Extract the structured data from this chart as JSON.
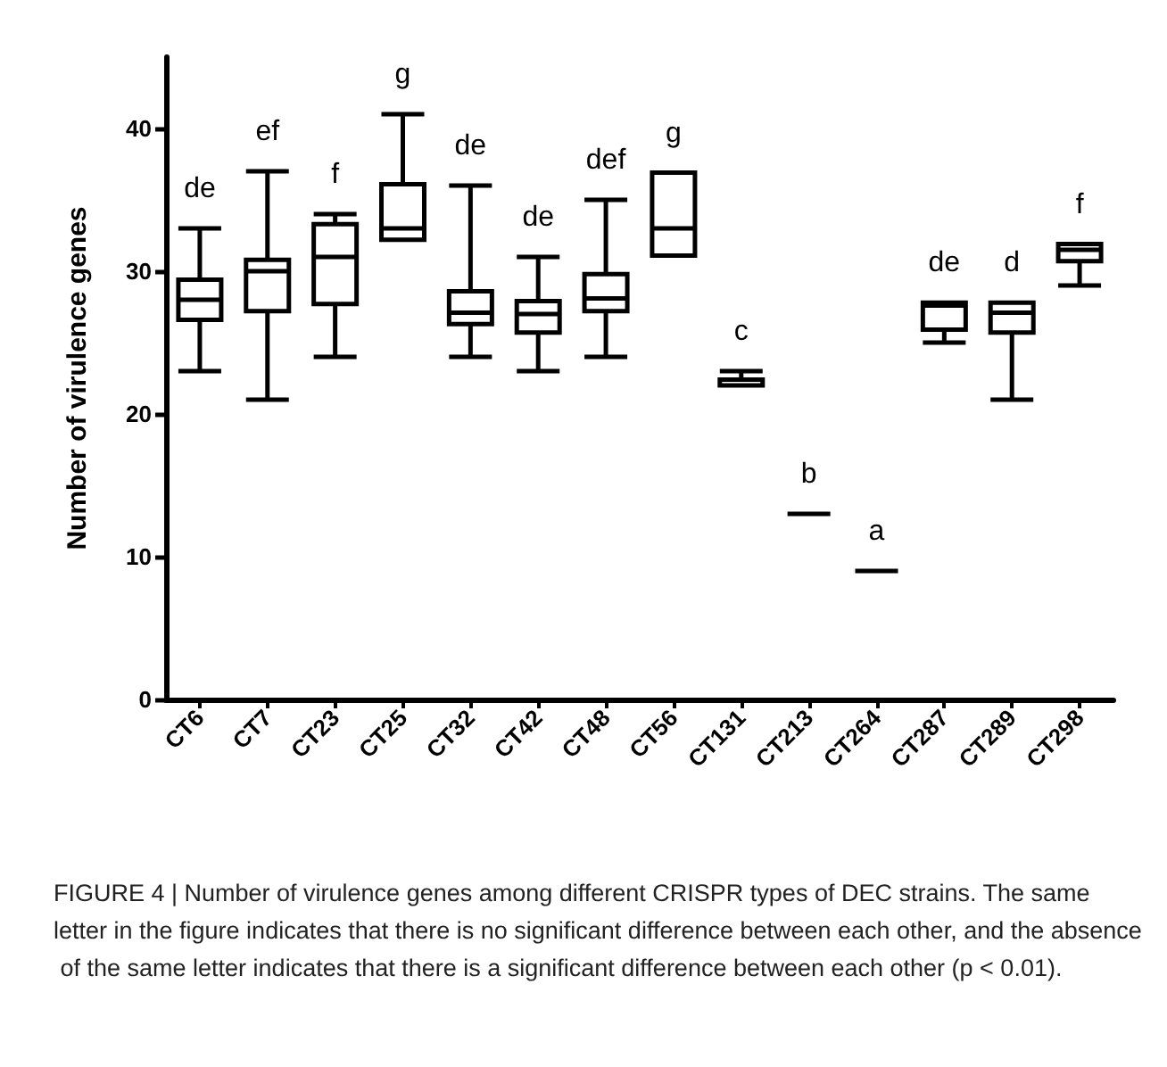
{
  "chart_data": {
    "type": "box",
    "ylabel": "Number of virulence genes",
    "categories": [
      "CT6",
      "CT7",
      "CT23",
      "CT25",
      "CT32",
      "CT42",
      "CT48",
      "CT56",
      "CT131",
      "CT213",
      "CT264",
      "CT287",
      "CT289",
      "CT298"
    ],
    "boxes": [
      {
        "low": 23,
        "q1": 26.6,
        "median": 28,
        "q3": 29.4,
        "high": 33
      },
      {
        "low": 21,
        "q1": 27.2,
        "median": 30,
        "q3": 30.8,
        "high": 37
      },
      {
        "low": 24,
        "q1": 27.7,
        "median": 31,
        "q3": 33.3,
        "high": 34
      },
      {
        "low": 32.2,
        "q1": 32.2,
        "median": 33,
        "q3": 36.1,
        "high": 41
      },
      {
        "low": 24,
        "q1": 26.3,
        "median": 27.1,
        "q3": 28.6,
        "high": 36
      },
      {
        "low": 23,
        "q1": 25.7,
        "median": 27,
        "q3": 27.9,
        "high": 31
      },
      {
        "low": 24,
        "q1": 27.2,
        "median": 28.1,
        "q3": 29.8,
        "high": 35
      },
      {
        "low": 31.1,
        "q1": 31.1,
        "median": 33,
        "q3": 36.9,
        "high": 36.9
      },
      {
        "low": 22,
        "q1": 22,
        "median": 22,
        "q3": 22.4,
        "high": 23
      },
      {
        "low": 13,
        "q1": 13,
        "median": 13,
        "q3": 13,
        "high": 13
      },
      {
        "low": 9,
        "q1": 9,
        "median": 9,
        "q3": 9,
        "high": 9
      },
      {
        "low": 25,
        "q1": 25.9,
        "median": 27.6,
        "q3": 27.8,
        "high": 27.8
      },
      {
        "low": 21,
        "q1": 25.7,
        "median": 27.1,
        "q3": 27.8,
        "high": 27.8
      },
      {
        "low": 29,
        "q1": 30.7,
        "median": 31.5,
        "q3": 31.9,
        "high": 31.9
      }
    ],
    "color": "#000000",
    "ylim": [
      0,
      45
    ],
    "yticks": [
      0,
      10,
      20,
      30,
      40
    ],
    "grid": false,
    "annotations": [
      "de",
      "ef",
      "f",
      "g",
      "de",
      "de",
      "def",
      "g",
      "c",
      "b",
      "a",
      "de",
      "d",
      "f",
      "FIGURE 4 | Number of virulence genes among different CRISPR types of DEC strains. The same letter in the figure indicates that there is no significant difference between each other, and the absence of the same letter indicates that there is a significant difference between each other (p < 0.01)."
    ]
  }
}
